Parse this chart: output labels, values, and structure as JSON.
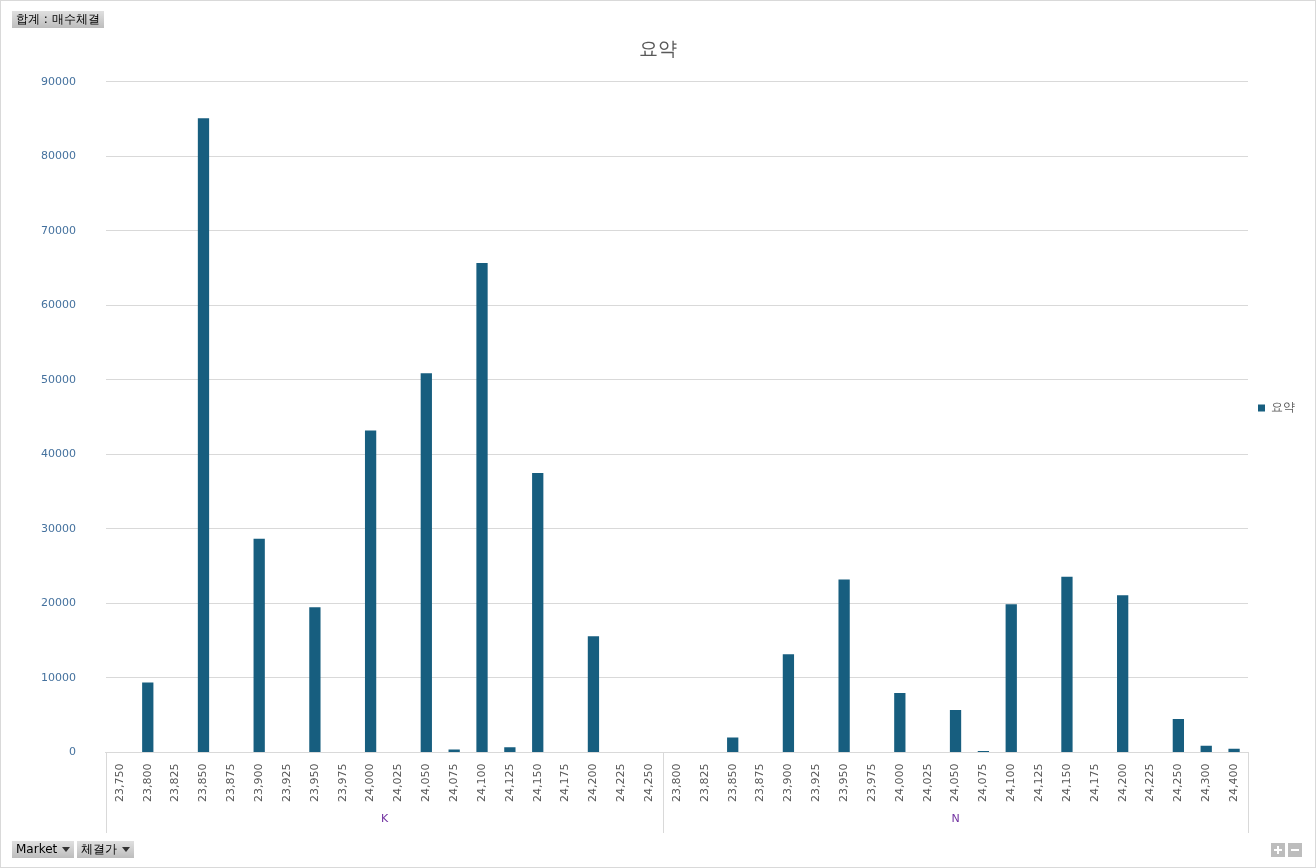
{
  "chart_data": {
    "type": "bar",
    "title": "요약",
    "categories": [
      "23,750",
      "23,800",
      "23,825",
      "23,850",
      "23,875",
      "23,900",
      "23,925",
      "23,950",
      "23,975",
      "24,000",
      "24,025",
      "24,050",
      "24,075",
      "24,100",
      "24,125",
      "24,150",
      "24,175",
      "24,200",
      "24,225",
      "24,250",
      "23,800",
      "23,825",
      "23,850",
      "23,875",
      "23,900",
      "23,925",
      "23,950",
      "23,975",
      "24,000",
      "24,025",
      "24,050",
      "24,075",
      "24,100",
      "24,125",
      "24,150",
      "24,175",
      "24,200",
      "24,225",
      "24,250",
      "24,300",
      "24,400"
    ],
    "series": [
      {
        "name": "요약",
        "color": "#175e7f",
        "values": [
          null,
          9400,
          null,
          85100,
          null,
          28700,
          null,
          19500,
          null,
          43200,
          null,
          50900,
          400,
          65700,
          700,
          37500,
          null,
          15600,
          null,
          null,
          null,
          null,
          2000,
          null,
          13200,
          null,
          23200,
          null,
          8000,
          null,
          5700,
          200,
          19900,
          null,
          23600,
          null,
          21100,
          null,
          4500,
          900,
          500
        ]
      }
    ],
    "ylim": [
      0,
      90000
    ],
    "yticks": [
      0,
      10000,
      20000,
      30000,
      40000,
      50000,
      60000,
      70000,
      80000,
      90000
    ],
    "grid": "y",
    "legend": "right",
    "annotations": [
      "합계 : 매수체결",
      "Market",
      "체결가",
      "K",
      "N"
    ]
  }
}
